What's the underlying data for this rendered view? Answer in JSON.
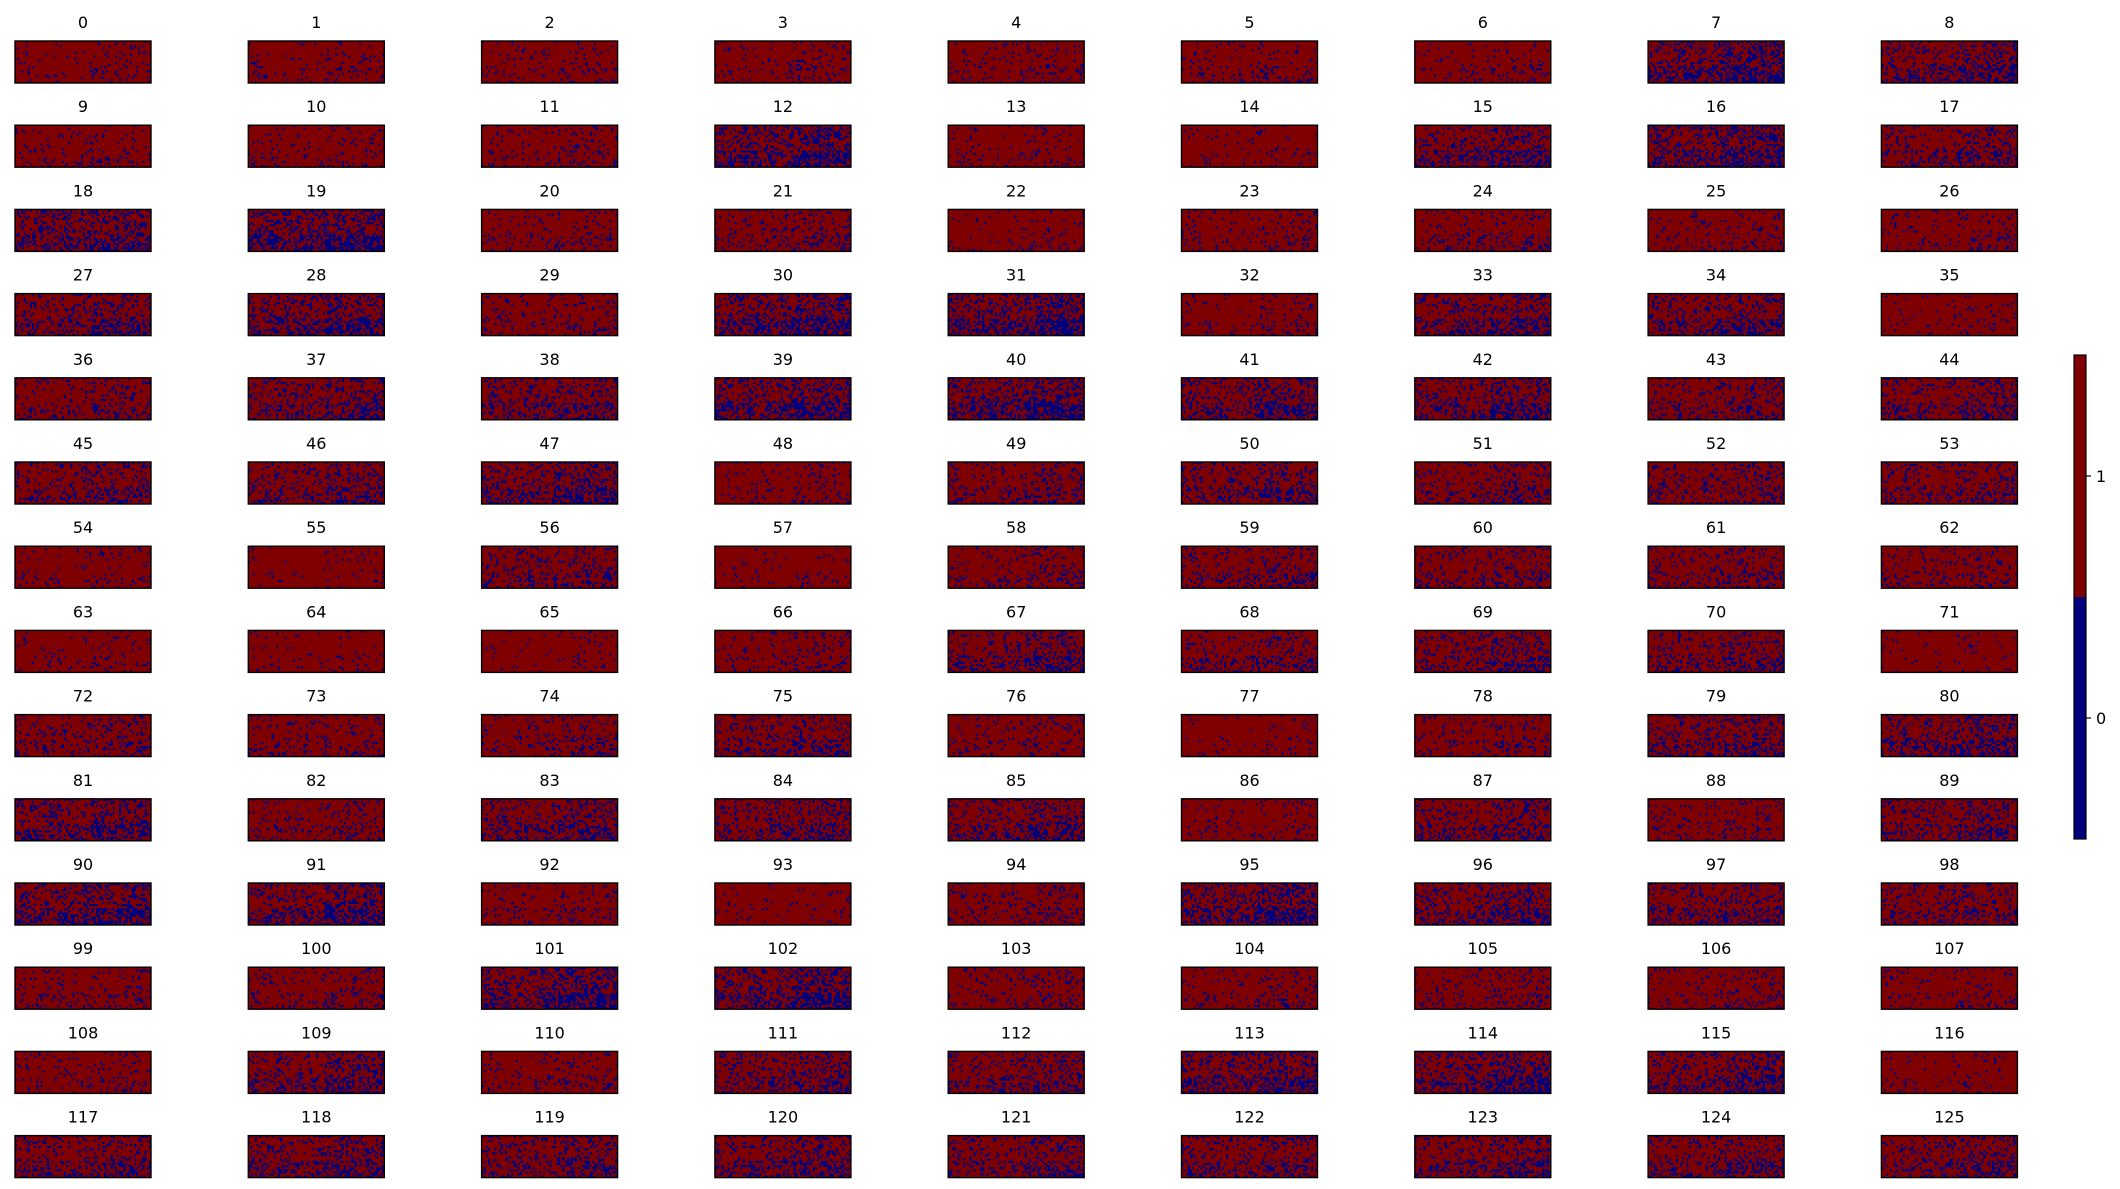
{
  "chart_data": {
    "type": "heatmap",
    "layout": {
      "rows": 14,
      "cols": 9
    },
    "panel_titles": [
      "0",
      "1",
      "2",
      "3",
      "4",
      "5",
      "6",
      "7",
      "8",
      "9",
      "10",
      "11",
      "12",
      "13",
      "14",
      "15",
      "16",
      "17",
      "18",
      "19",
      "20",
      "21",
      "22",
      "23",
      "24",
      "25",
      "26",
      "27",
      "28",
      "29",
      "30",
      "31",
      "32",
      "33",
      "34",
      "35",
      "36",
      "37",
      "38",
      "39",
      "40",
      "41",
      "42",
      "43",
      "44",
      "45",
      "46",
      "47",
      "48",
      "49",
      "50",
      "51",
      "52",
      "53",
      "54",
      "55",
      "56",
      "57",
      "58",
      "59",
      "60",
      "61",
      "62",
      "63",
      "64",
      "65",
      "66",
      "67",
      "68",
      "69",
      "70",
      "71",
      "72",
      "73",
      "74",
      "75",
      "76",
      "77",
      "78",
      "79",
      "80",
      "81",
      "82",
      "83",
      "84",
      "85",
      "86",
      "87",
      "88",
      "89",
      "90",
      "91",
      "92",
      "93",
      "94",
      "95",
      "96",
      "97",
      "98",
      "99",
      "100",
      "101",
      "102",
      "103",
      "104",
      "105",
      "106",
      "107",
      "108",
      "109",
      "110",
      "111",
      "112",
      "113",
      "114",
      "115",
      "116",
      "117",
      "118",
      "119",
      "120",
      "121",
      "122",
      "123",
      "124",
      "125"
    ],
    "blue_fraction": [
      0.08,
      0.09,
      0.1,
      0.1,
      0.1,
      0.09,
      0.09,
      0.38,
      0.3,
      0.1,
      0.09,
      0.1,
      0.38,
      0.07,
      0.05,
      0.3,
      0.36,
      0.22,
      0.34,
      0.4,
      0.1,
      0.14,
      0.06,
      0.1,
      0.12,
      0.09,
      0.1,
      0.26,
      0.36,
      0.12,
      0.38,
      0.4,
      0.09,
      0.3,
      0.26,
      0.06,
      0.16,
      0.28,
      0.26,
      0.36,
      0.4,
      0.3,
      0.3,
      0.2,
      0.24,
      0.22,
      0.24,
      0.32,
      0.1,
      0.18,
      0.24,
      0.2,
      0.2,
      0.2,
      0.08,
      0.05,
      0.2,
      0.05,
      0.12,
      0.22,
      0.16,
      0.18,
      0.14,
      0.06,
      0.05,
      0.05,
      0.12,
      0.26,
      0.2,
      0.24,
      0.24,
      0.04,
      0.16,
      0.12,
      0.14,
      0.22,
      0.1,
      0.05,
      0.12,
      0.26,
      0.3,
      0.32,
      0.14,
      0.26,
      0.28,
      0.28,
      0.08,
      0.24,
      0.12,
      0.26,
      0.36,
      0.32,
      0.1,
      0.06,
      0.14,
      0.38,
      0.3,
      0.26,
      0.2,
      0.12,
      0.12,
      0.38,
      0.4,
      0.12,
      0.12,
      0.12,
      0.12,
      0.1,
      0.1,
      0.26,
      0.1,
      0.24,
      0.24,
      0.34,
      0.36,
      0.32,
      0.06,
      0.26,
      0.3,
      0.24,
      0.28,
      0.24,
      0.26,
      0.24,
      0.24,
      0.22
    ],
    "grid_resolution": {
      "rows": 20,
      "cols": 64
    },
    "colormap": {
      "name": "jet-binary",
      "low": "#00007f",
      "high": "#7f0000",
      "levels": [
        0,
        1
      ]
    },
    "colorbar": {
      "ticks": [
        "0",
        "1"
      ],
      "range": [
        -0.5,
        1.5
      ]
    }
  }
}
